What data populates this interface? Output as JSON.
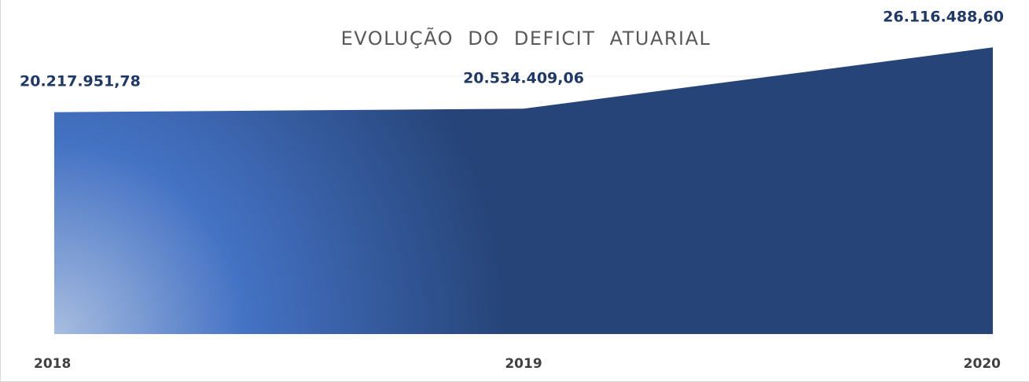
{
  "chart_data": {
    "type": "area",
    "title": "EVOLUÇÃO  DO  DEFICIT  ATUARIAL",
    "categories": [
      "2018",
      "2019",
      "2020"
    ],
    "values": [
      20217951.78,
      20534409.06,
      26116488.6
    ],
    "data_labels": [
      "20.217.951,78",
      "20.534.409,06",
      "26.116.488,60"
    ],
    "xlabel": "",
    "ylabel": "",
    "ylim": [
      0,
      27000000
    ],
    "grid": false,
    "legend": "none",
    "colors": {
      "fill_dark": "#264478",
      "fill_mid": "#4472c4",
      "fill_light": "#a8bde0",
      "label": "#1f3864",
      "title": "#595959",
      "axis_text": "#404040"
    }
  }
}
